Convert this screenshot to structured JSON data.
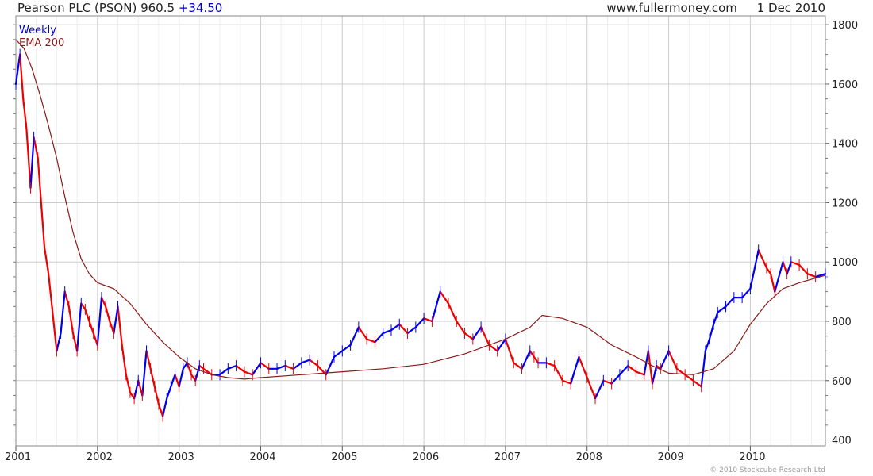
{
  "header": {
    "title": "Pearson PLC (PSON)",
    "price": "960.5",
    "change": "+34.50",
    "website": "www.fullermoney.com",
    "date": "1 Dec 2010"
  },
  "footer": {
    "copyright": "© 2010 Stockcube Research Ltd"
  },
  "colors": {
    "up": "#0000ee",
    "down": "#ee0000",
    "ema": "#8b1a1a",
    "grid": "#cccccc",
    "legend_weekly": "#0000cc",
    "legend_ema": "#8b1a1a"
  },
  "chart_data": {
    "type": "line",
    "title": "Pearson PLC (PSON) 960.5 +34.50",
    "xlabel": "",
    "ylabel": "",
    "x_ticks": [
      "2001",
      "2002",
      "2003",
      "2004",
      "2005",
      "2006",
      "2007",
      "2008",
      "2009",
      "2010"
    ],
    "x_range": [
      2001.0,
      2010.92
    ],
    "y_ticks": [
      400,
      600,
      800,
      1000,
      1200,
      1400,
      1600,
      1800
    ],
    "ylim": [
      380,
      1830
    ],
    "grid": true,
    "legend": {
      "placement": "top-left",
      "entries": [
        "Weekly",
        "EMA 200"
      ]
    },
    "series": [
      {
        "name": "Weekly",
        "x": [
          2001.0,
          2001.05,
          2001.09,
          2001.13,
          2001.18,
          2001.22,
          2001.27,
          2001.31,
          2001.35,
          2001.4,
          2001.45,
          2001.5,
          2001.55,
          2001.6,
          2001.65,
          2001.7,
          2001.75,
          2001.8,
          2001.85,
          2001.9,
          2001.95,
          2002.0,
          2002.05,
          2002.1,
          2002.15,
          2002.2,
          2002.25,
          2002.3,
          2002.35,
          2002.4,
          2002.45,
          2002.5,
          2002.55,
          2002.6,
          2002.65,
          2002.7,
          2002.75,
          2002.8,
          2002.85,
          2002.9,
          2002.95,
          2003.0,
          2003.05,
          2003.1,
          2003.15,
          2003.2,
          2003.25,
          2003.3,
          2003.4,
          2003.5,
          2003.6,
          2003.7,
          2003.8,
          2003.9,
          2004.0,
          2004.1,
          2004.2,
          2004.3,
          2004.4,
          2004.5,
          2004.6,
          2004.7,
          2004.8,
          2004.9,
          2005.0,
          2005.1,
          2005.2,
          2005.3,
          2005.4,
          2005.5,
          2005.6,
          2005.7,
          2005.8,
          2005.9,
          2006.0,
          2006.1,
          2006.15,
          2006.2,
          2006.3,
          2006.4,
          2006.5,
          2006.6,
          2006.7,
          2006.8,
          2006.9,
          2007.0,
          2007.1,
          2007.2,
          2007.3,
          2007.35,
          2007.4,
          2007.5,
          2007.6,
          2007.7,
          2007.8,
          2007.9,
          2008.0,
          2008.1,
          2008.2,
          2008.3,
          2008.4,
          2008.5,
          2008.6,
          2008.7,
          2008.75,
          2008.8,
          2008.85,
          2008.9,
          2009.0,
          2009.1,
          2009.2,
          2009.3,
          2009.4,
          2009.45,
          2009.5,
          2009.55,
          2009.6,
          2009.7,
          2009.8,
          2009.9,
          2010.0,
          2010.1,
          2010.2,
          2010.25,
          2010.3,
          2010.4,
          2010.45,
          2010.5,
          2010.6,
          2010.7,
          2010.8,
          2010.92
        ],
        "values": [
          1600,
          1700,
          1550,
          1450,
          1250,
          1420,
          1350,
          1200,
          1050,
          960,
          830,
          700,
          760,
          900,
          850,
          760,
          700,
          860,
          840,
          800,
          760,
          720,
          880,
          850,
          800,
          760,
          850,
          720,
          620,
          560,
          540,
          600,
          550,
          700,
          640,
          580,
          520,
          480,
          540,
          580,
          620,
          580,
          640,
          660,
          620,
          600,
          650,
          640,
          620,
          620,
          640,
          650,
          630,
          620,
          660,
          640,
          640,
          650,
          640,
          660,
          670,
          650,
          620,
          680,
          700,
          720,
          780,
          740,
          730,
          760,
          770,
          790,
          760,
          780,
          810,
          800,
          850,
          900,
          860,
          800,
          760,
          740,
          780,
          720,
          700,
          740,
          660,
          640,
          700,
          680,
          660,
          660,
          650,
          600,
          590,
          680,
          610,
          540,
          600,
          590,
          620,
          650,
          630,
          620,
          700,
          590,
          650,
          640,
          700,
          640,
          620,
          600,
          580,
          700,
          740,
          790,
          830,
          850,
          880,
          880,
          910,
          1040,
          980,
          960,
          900,
          1000,
          960,
          1000,
          990,
          960,
          950,
          960
        ]
      },
      {
        "name": "EMA 200",
        "x": [
          2001.0,
          2001.1,
          2001.2,
          2001.3,
          2001.4,
          2001.5,
          2001.6,
          2001.7,
          2001.8,
          2001.9,
          2002.0,
          2002.2,
          2002.4,
          2002.6,
          2002.8,
          2003.0,
          2003.2,
          2003.4,
          2003.6,
          2003.8,
          2004.0,
          2004.5,
          2005.0,
          2005.5,
          2006.0,
          2006.5,
          2007.0,
          2007.3,
          2007.45,
          2007.7,
          2008.0,
          2008.3,
          2008.6,
          2008.8,
          2009.0,
          2009.3,
          2009.55,
          2009.8,
          2010.0,
          2010.2,
          2010.4,
          2010.6,
          2010.92
        ],
        "values": [
          1750,
          1720,
          1650,
          1560,
          1460,
          1350,
          1220,
          1100,
          1010,
          960,
          930,
          910,
          860,
          790,
          730,
          680,
          640,
          620,
          610,
          605,
          610,
          620,
          630,
          640,
          655,
          690,
          740,
          780,
          820,
          810,
          780,
          720,
          680,
          650,
          625,
          620,
          640,
          700,
          790,
          860,
          910,
          930,
          955
        ]
      }
    ]
  }
}
